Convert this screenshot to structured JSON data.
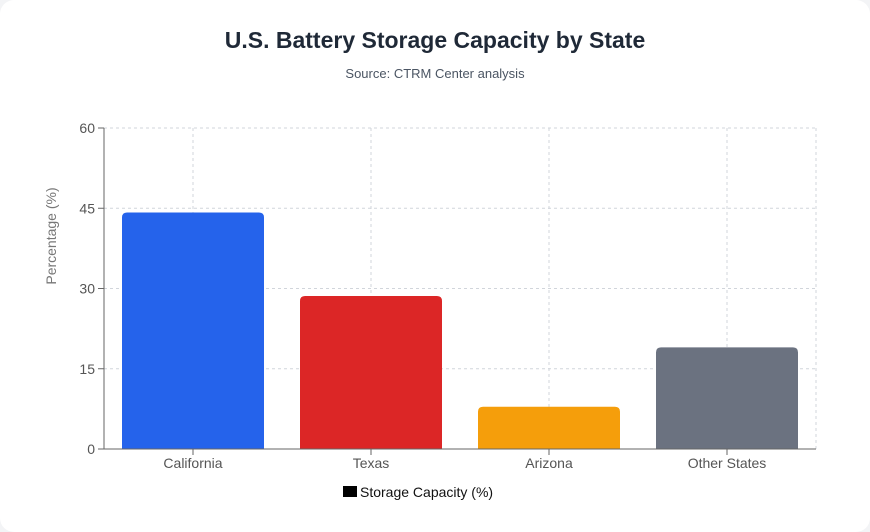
{
  "chart_data": {
    "type": "bar",
    "title": "U.S. Battery Storage Capacity by State",
    "subtitle": "Source: CTRM Center analysis",
    "categories": [
      "California",
      "Texas",
      "Arizona",
      "Other States"
    ],
    "series": [
      {
        "name": "Storage Capacity (%)",
        "values": [
          44.2,
          28.6,
          7.9,
          19.0
        ],
        "colors": [
          "#2563eb",
          "#dc2626",
          "#f59e0b",
          "#6b7280"
        ]
      }
    ],
    "xlabel": "",
    "ylabel": "Percentage (%)",
    "ylim": [
      0,
      60
    ],
    "yticks": [
      0,
      15,
      30,
      45,
      60
    ],
    "grid": true,
    "legend_position": "bottom"
  }
}
